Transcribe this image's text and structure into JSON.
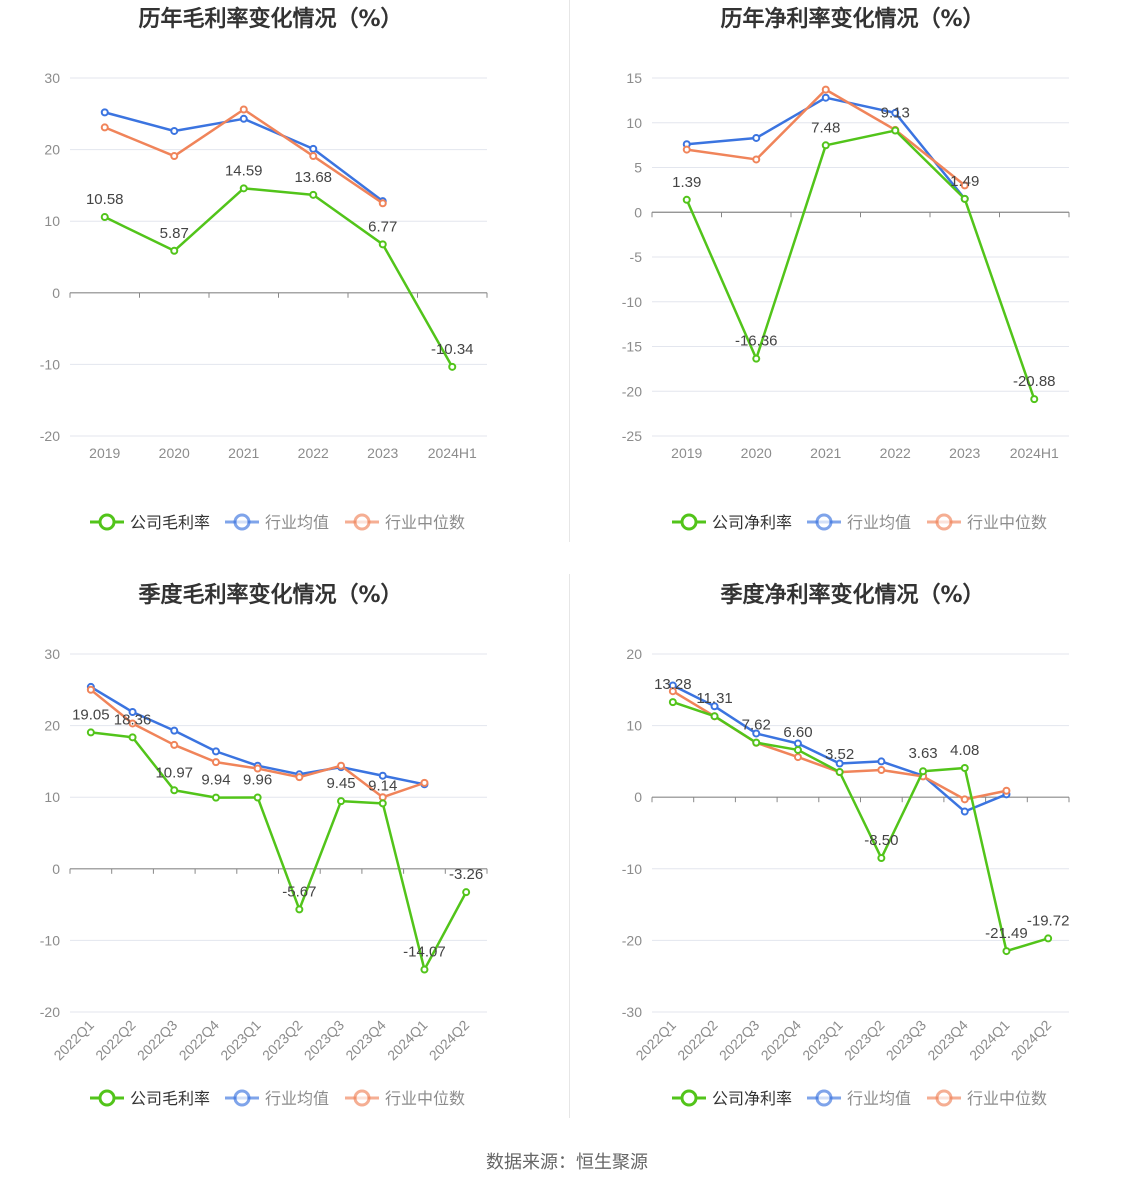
{
  "source_label": "数据来源：恒生聚源",
  "colors": {
    "company": "#52c41a",
    "industry_avg": "#3b74e0",
    "industry_median": "#f0845a"
  },
  "chart_data": [
    {
      "type": "line",
      "title": "历年毛利率变化情况（%）",
      "categories": [
        "2019",
        "2020",
        "2021",
        "2022",
        "2023",
        "2024H1"
      ],
      "ylim": [
        -20,
        30
      ],
      "yticks": [
        30,
        20,
        10,
        0,
        -10,
        -20
      ],
      "grid": true,
      "legend": "bottom",
      "rotate_x_labels": false,
      "series": [
        {
          "name": "公司毛利率",
          "key": "company",
          "values": [
            10.58,
            5.87,
            14.59,
            13.68,
            6.77,
            -10.34
          ],
          "labels": [
            "10.58",
            "5.87",
            "14.59",
            "13.68",
            "6.77",
            "-10.34"
          ]
        },
        {
          "name": "行业均值",
          "key": "industry_avg",
          "values": [
            25.2,
            22.6,
            24.3,
            20.1,
            12.8,
            null
          ]
        },
        {
          "name": "行业中位数",
          "key": "industry_median",
          "values": [
            23.1,
            19.1,
            25.6,
            19.1,
            12.5,
            null
          ]
        }
      ]
    },
    {
      "type": "line",
      "title": "历年净利率变化情况（%）",
      "categories": [
        "2019",
        "2020",
        "2021",
        "2022",
        "2023",
        "2024H1"
      ],
      "ylim": [
        -25,
        15
      ],
      "yticks": [
        15,
        10,
        5,
        0,
        -5,
        -10,
        -15,
        -20,
        -25
      ],
      "grid": true,
      "legend": "bottom",
      "rotate_x_labels": false,
      "series": [
        {
          "name": "公司净利率",
          "key": "company",
          "values": [
            1.39,
            -16.36,
            7.48,
            9.13,
            1.49,
            -20.88
          ],
          "labels": [
            "1.39",
            "-16.36",
            "7.48",
            "9.13",
            "1.49",
            "-20.88"
          ]
        },
        {
          "name": "行业均值",
          "key": "industry_avg",
          "values": [
            7.6,
            8.3,
            12.8,
            11.1,
            1.5,
            null
          ]
        },
        {
          "name": "行业中位数",
          "key": "industry_median",
          "values": [
            7.0,
            5.9,
            13.7,
            9.2,
            3.0,
            null
          ]
        }
      ]
    },
    {
      "type": "line",
      "title": "季度毛利率变化情况（%）",
      "categories": [
        "2022Q1",
        "2022Q2",
        "2022Q3",
        "2022Q4",
        "2023Q1",
        "2023Q2",
        "2023Q3",
        "2023Q4",
        "2024Q1",
        "2024Q2"
      ],
      "ylim": [
        -20,
        30
      ],
      "yticks": [
        30,
        20,
        10,
        0,
        -10,
        -20
      ],
      "grid": true,
      "legend": "bottom",
      "rotate_x_labels": true,
      "series": [
        {
          "name": "公司毛利率",
          "key": "company",
          "values": [
            19.05,
            18.36,
            10.97,
            9.94,
            9.96,
            -5.67,
            9.45,
            9.14,
            -14.07,
            -3.26
          ],
          "labels": [
            "19.05",
            "18.36",
            "10.97",
            "9.94",
            "9.96",
            "-5.67",
            "9.45",
            "9.14",
            "-14.07",
            "-3.26"
          ]
        },
        {
          "name": "行业均值",
          "key": "industry_avg",
          "values": [
            25.4,
            21.9,
            19.3,
            16.4,
            14.4,
            13.2,
            14.2,
            13.0,
            11.8,
            null
          ]
        },
        {
          "name": "行业中位数",
          "key": "industry_median",
          "values": [
            25.0,
            20.3,
            17.3,
            14.9,
            14.0,
            12.8,
            14.4,
            10.0,
            12.0,
            null
          ]
        }
      ]
    },
    {
      "type": "line",
      "title": "季度净利率变化情况（%）",
      "categories": [
        "2022Q1",
        "2022Q2",
        "2022Q3",
        "2022Q4",
        "2023Q1",
        "2023Q2",
        "2023Q3",
        "2023Q4",
        "2024Q1",
        "2024Q2"
      ],
      "ylim": [
        -30,
        20
      ],
      "yticks": [
        20,
        10,
        0,
        -10,
        -20,
        -30
      ],
      "grid": true,
      "legend": "bottom",
      "rotate_x_labels": true,
      "series": [
        {
          "name": "公司净利率",
          "key": "company",
          "values": [
            13.28,
            11.31,
            7.62,
            6.6,
            3.52,
            -8.5,
            3.63,
            4.08,
            -21.49,
            -19.72
          ],
          "labels": [
            "13.28",
            "11.31",
            "7.62",
            "6.60",
            "3.52",
            "-8.50",
            "3.63",
            "4.08",
            "-21.49",
            "-19.72"
          ]
        },
        {
          "name": "行业均值",
          "key": "industry_avg",
          "values": [
            15.6,
            12.7,
            8.9,
            7.5,
            4.7,
            5.0,
            3.0,
            -2.0,
            0.4,
            null
          ]
        },
        {
          "name": "行业中位数",
          "key": "industry_median",
          "values": [
            14.8,
            11.3,
            7.6,
            5.6,
            3.5,
            3.8,
            2.9,
            -0.3,
            0.9,
            null
          ]
        }
      ]
    }
  ]
}
